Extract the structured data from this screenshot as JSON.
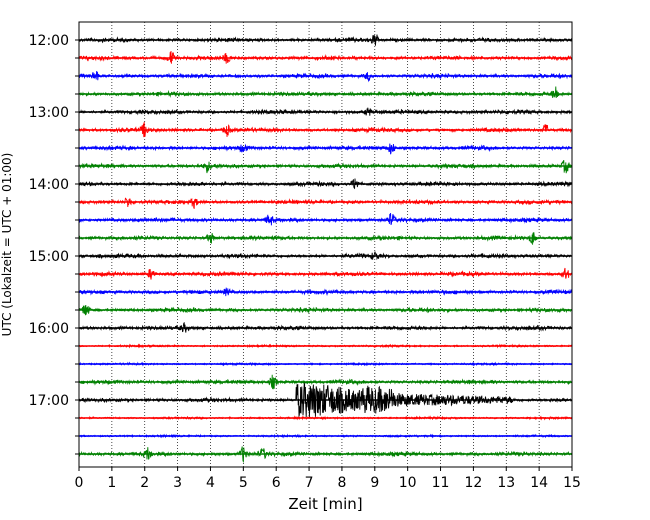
{
  "chart_data": {
    "type": "line",
    "title": "",
    "xlabel": "Zeit  [min]",
    "ylabel": "UTC (Lokalzeit = UTC + 01:00)",
    "xlim": [
      0,
      15
    ],
    "x_ticks": [
      "0",
      "1",
      "2",
      "3",
      "4",
      "5",
      "6",
      "7",
      "8",
      "9",
      "10",
      "11",
      "12",
      "13",
      "14",
      "15"
    ],
    "y_tick_labels": [
      "12:00",
      "13:00",
      "14:00",
      "15:00",
      "16:00",
      "17:00"
    ],
    "grid": "vertical dotted at each minute",
    "trace_interval_min": 15,
    "trace_count": 24,
    "colors_cycle": [
      "#000000",
      "#ff0000",
      "#0000ff",
      "#008000"
    ],
    "traces": [
      {
        "start": "12:00",
        "color": "#000000",
        "events": [
          [
            9.0,
            0.45
          ]
        ]
      },
      {
        "start": "12:15",
        "color": "#ff0000",
        "events": [
          [
            2.8,
            0.5
          ],
          [
            4.5,
            0.35
          ]
        ]
      },
      {
        "start": "12:30",
        "color": "#0000ff",
        "events": [
          [
            0.5,
            0.4
          ],
          [
            8.8,
            0.3
          ]
        ]
      },
      {
        "start": "12:45",
        "color": "#008000",
        "events": [
          [
            14.5,
            0.5
          ]
        ]
      },
      {
        "start": "13:00",
        "color": "#000000",
        "events": [
          [
            8.8,
            0.3
          ]
        ]
      },
      {
        "start": "13:15",
        "color": "#ff0000",
        "events": [
          [
            2.0,
            0.5
          ],
          [
            4.5,
            0.4
          ],
          [
            14.2,
            0.4
          ]
        ]
      },
      {
        "start": "13:30",
        "color": "#0000ff",
        "events": [
          [
            5.0,
            0.3
          ],
          [
            9.5,
            0.45
          ]
        ]
      },
      {
        "start": "13:45",
        "color": "#008000",
        "events": [
          [
            3.9,
            0.35
          ],
          [
            14.8,
            0.5
          ]
        ]
      },
      {
        "start": "14:00",
        "color": "#000000",
        "events": [
          [
            8.4,
            0.45
          ]
        ]
      },
      {
        "start": "14:15",
        "color": "#ff0000",
        "events": [
          [
            1.5,
            0.4
          ],
          [
            3.5,
            0.35
          ]
        ]
      },
      {
        "start": "14:30",
        "color": "#0000ff",
        "events": [
          [
            5.8,
            0.4
          ],
          [
            9.5,
            0.45
          ]
        ]
      },
      {
        "start": "14:45",
        "color": "#008000",
        "events": [
          [
            4.0,
            0.4
          ],
          [
            13.8,
            0.5
          ]
        ]
      },
      {
        "start": "15:00",
        "color": "#000000",
        "events": [
          [
            9.0,
            0.3
          ]
        ]
      },
      {
        "start": "15:15",
        "color": "#ff0000",
        "events": [
          [
            2.2,
            0.4
          ],
          [
            14.8,
            0.4
          ]
        ]
      },
      {
        "start": "15:30",
        "color": "#0000ff",
        "events": [
          [
            4.5,
            0.25
          ]
        ]
      },
      {
        "start": "15:45",
        "color": "#008000",
        "events": [
          [
            0.2,
            0.5
          ]
        ]
      },
      {
        "start": "16:00",
        "color": "#000000",
        "events": [
          [
            3.2,
            0.3
          ]
        ]
      },
      {
        "start": "16:15",
        "color": "#ff0000",
        "events": []
      },
      {
        "start": "16:30",
        "color": "#0000ff",
        "events": []
      },
      {
        "start": "16:45",
        "color": "#008000",
        "events": [
          [
            5.9,
            0.5
          ]
        ]
      },
      {
        "start": "17:00",
        "color": "#000000",
        "events": [],
        "earthquake": {
          "onset_min": 6.6,
          "peak_amplitude": 1.9,
          "end_min": 13.2
        }
      },
      {
        "start": "17:15",
        "color": "#ff0000",
        "events": []
      },
      {
        "start": "17:30",
        "color": "#0000ff",
        "events": []
      },
      {
        "start": "17:45",
        "color": "#008000",
        "events": [
          [
            2.1,
            0.45
          ],
          [
            5.0,
            0.6
          ],
          [
            5.6,
            0.35
          ]
        ]
      }
    ]
  }
}
